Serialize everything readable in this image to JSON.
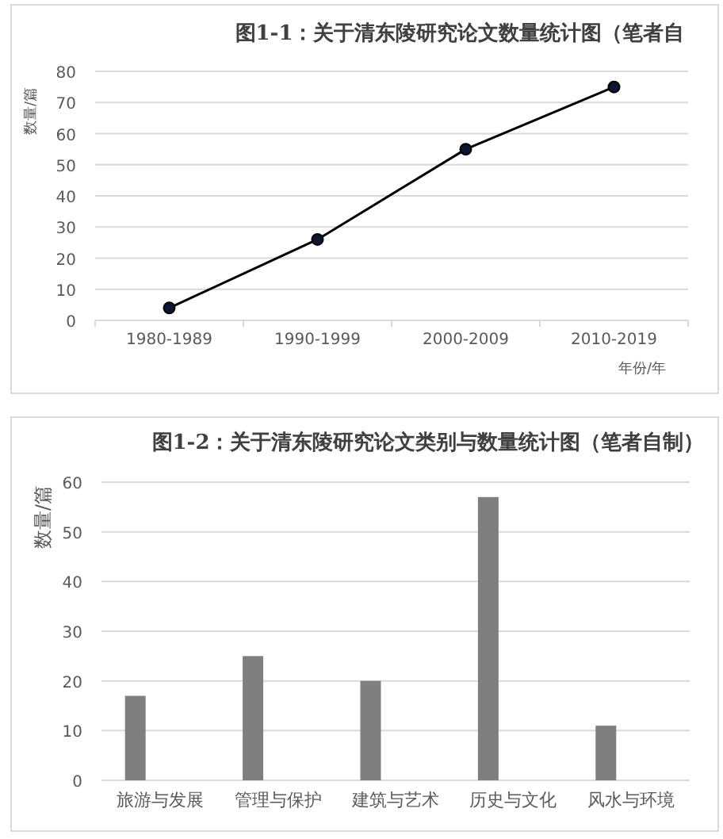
{
  "chart_data": [
    {
      "type": "line",
      "title": "图1-1：关于清东陵研究论文数量统计图（笔者自",
      "ylabel": "数量/篇",
      "xlabel": "年份/年",
      "categories": [
        "1980-1989",
        "1990-1999",
        "2000-2009",
        "2010-2019"
      ],
      "series": [
        {
          "color": "#000000",
          "values": [
            4,
            26,
            55,
            75
          ]
        }
      ],
      "ylim": [
        0,
        80
      ],
      "yticks": [
        0,
        10,
        20,
        30,
        40,
        50,
        60,
        70,
        80
      ],
      "grid": "y",
      "marker": "circle",
      "line_style": "solid"
    },
    {
      "type": "bar",
      "title": "图1-2：关于清东陵研究论文类别与数量统计图（笔者自制）",
      "ylabel": "数量/篇",
      "categories": [
        "旅游与发展",
        "管理与保护",
        "建筑与艺术",
        "历史与文化",
        "风水与环境"
      ],
      "series": [
        {
          "color": "#7f7f7f",
          "values": [
            17,
            25,
            20,
            57,
            11
          ]
        }
      ],
      "ylim": [
        0,
        60
      ],
      "yticks": [
        0,
        10,
        20,
        30,
        40,
        50,
        60
      ],
      "grid": "y"
    }
  ]
}
